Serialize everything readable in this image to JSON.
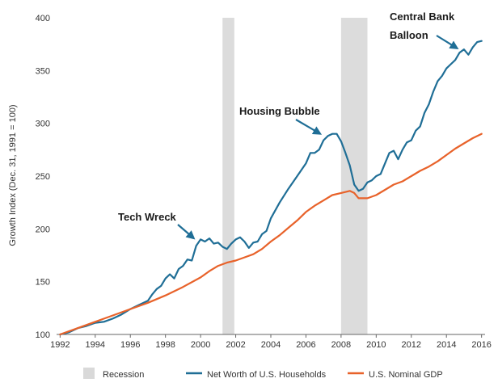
{
  "chart_data": {
    "type": "line",
    "ylabel": "Growth Index (Dec. 31, 1991 = 100)",
    "xlim": [
      1991.8,
      2016.2
    ],
    "ylim": [
      100,
      400
    ],
    "yticks": [
      100,
      150,
      200,
      250,
      300,
      350,
      400
    ],
    "xticks": [
      1992,
      1994,
      1996,
      1998,
      2000,
      2002,
      2004,
      2006,
      2008,
      2010,
      2012,
      2014,
      2016
    ],
    "recessions": [
      {
        "start": 2001.25,
        "end": 2001.92
      },
      {
        "start": 2008.0,
        "end": 2009.5
      }
    ],
    "series": [
      {
        "name": "Net Worth of U.S. Households",
        "color": "#1f6e96",
        "x": [
          1992.0,
          1992.5,
          1993.0,
          1993.5,
          1994.0,
          1994.5,
          1995.0,
          1995.5,
          1996.0,
          1996.5,
          1997.0,
          1997.25,
          1997.5,
          1997.75,
          1998.0,
          1998.25,
          1998.5,
          1998.75,
          1999.0,
          1999.25,
          1999.5,
          1999.75,
          2000.0,
          2000.25,
          2000.5,
          2000.75,
          2001.0,
          2001.25,
          2001.5,
          2001.75,
          2002.0,
          2002.25,
          2002.5,
          2002.75,
          2003.0,
          2003.25,
          2003.5,
          2003.75,
          2004.0,
          2004.5,
          2005.0,
          2005.5,
          2006.0,
          2006.25,
          2006.5,
          2006.75,
          2007.0,
          2007.25,
          2007.5,
          2007.75,
          2008.0,
          2008.25,
          2008.5,
          2008.75,
          2009.0,
          2009.25,
          2009.5,
          2009.75,
          2010.0,
          2010.25,
          2010.5,
          2010.75,
          2011.0,
          2011.25,
          2011.5,
          2011.75,
          2012.0,
          2012.25,
          2012.5,
          2012.75,
          2013.0,
          2013.25,
          2013.5,
          2013.75,
          2014.0,
          2014.25,
          2014.5,
          2014.75,
          2015.0,
          2015.25,
          2015.5,
          2015.75,
          2016.0
        ],
        "values": [
          100,
          102,
          106,
          108,
          111,
          112,
          115,
          119,
          124,
          128,
          132,
          138,
          143,
          146,
          153,
          157,
          153,
          162,
          165,
          171,
          170,
          184,
          190,
          188,
          191,
          186,
          187,
          183,
          181,
          186,
          190,
          192,
          188,
          182,
          187,
          188,
          195,
          198,
          210,
          225,
          238,
          250,
          262,
          272,
          272,
          275,
          284,
          288,
          290,
          290,
          283,
          272,
          260,
          242,
          236,
          238,
          244,
          246,
          250,
          252,
          262,
          272,
          274,
          266,
          275,
          282,
          284,
          293,
          297,
          310,
          318,
          330,
          340,
          345,
          352,
          356,
          360,
          367,
          370,
          365,
          372,
          377,
          378
        ]
      },
      {
        "name": "U.S. Nominal GDP",
        "color": "#e8622a",
        "x": [
          1992.0,
          1993.0,
          1994.0,
          1995.0,
          1996.0,
          1997.0,
          1998.0,
          1999.0,
          2000.0,
          2000.5,
          2001.0,
          2001.5,
          2002.0,
          2002.5,
          2003.0,
          2003.5,
          2004.0,
          2004.5,
          2005.0,
          2005.5,
          2006.0,
          2006.5,
          2007.0,
          2007.5,
          2008.0,
          2008.5,
          2008.75,
          2009.0,
          2009.5,
          2010.0,
          2010.5,
          2011.0,
          2011.5,
          2012.0,
          2012.5,
          2013.0,
          2013.5,
          2014.0,
          2014.5,
          2015.0,
          2015.5,
          2016.0
        ],
        "values": [
          100,
          106,
          112,
          118,
          124,
          130,
          137,
          145,
          154,
          160,
          165,
          168,
          170,
          173,
          176,
          181,
          188,
          194,
          201,
          208,
          216,
          222,
          227,
          232,
          234,
          236,
          234,
          229,
          229,
          232,
          237,
          242,
          245,
          250,
          255,
          259,
          264,
          270,
          276,
          281,
          286,
          290
        ]
      }
    ],
    "annotations": [
      {
        "text": "Tech Wreck",
        "arrow_to": {
          "x": 1999.8,
          "y": 188
        }
      },
      {
        "text": "Housing Bubble",
        "arrow_to": {
          "x": 2007.0,
          "y": 287
        }
      },
      {
        "text": "Central Bank",
        "arrow_to": {
          "x": 2014.8,
          "y": 368
        }
      },
      {
        "text": "Balloon"
      }
    ],
    "legend": {
      "position": "bottom",
      "items": [
        {
          "label": "Recession",
          "kind": "box",
          "color": "#d9d9d9"
        },
        {
          "label": "Net Worth of U.S. Households",
          "kind": "line",
          "color": "#1f6e96"
        },
        {
          "label": "U.S. Nominal GDP",
          "kind": "line",
          "color": "#e8622a"
        }
      ]
    }
  }
}
